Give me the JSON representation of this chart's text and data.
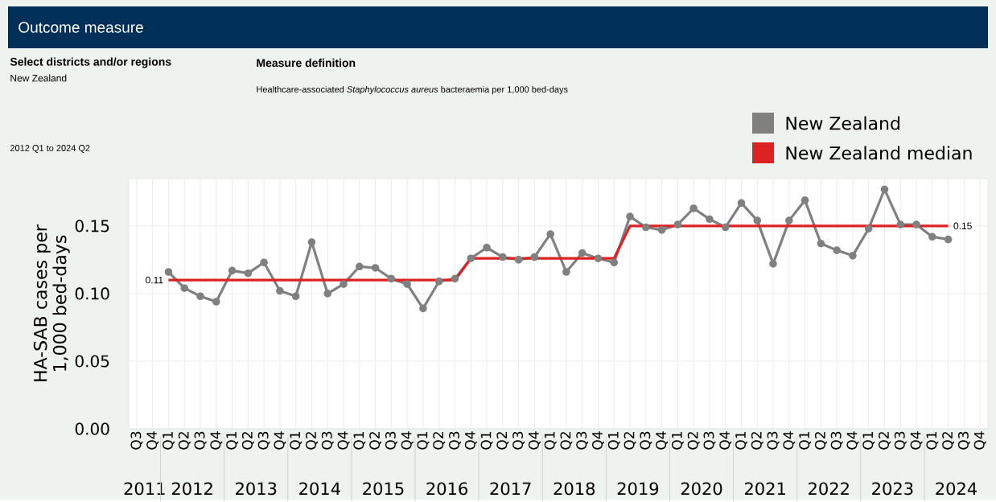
{
  "chart_data": {
    "type": "line",
    "title": "Outcome measure",
    "annotations": [
      "Select districts and/or regions",
      "New Zealand",
      "Measure definition",
      "Healthcare-associated *Staphylococcus aureus* bacteraemia per 1,000 bed-days",
      "2012 Q1 to 2024 Q2",
      "2011",
      "2012",
      "2013",
      "2014",
      "2015",
      "2016",
      "2017",
      "2018",
      "2019",
      "2020",
      "2021",
      "2022",
      "2023",
      "2024"
    ],
    "ylabel": "HA-SAB cases per 1,000 bed-days",
    "categories": [
      "Q3",
      "Q4",
      "Q1",
      "Q2",
      "Q3",
      "Q4",
      "Q1",
      "Q2",
      "Q3",
      "Q4",
      "Q1",
      "Q2",
      "Q3",
      "Q4",
      "Q1",
      "Q2",
      "Q3",
      "Q4",
      "Q1",
      "Q2",
      "Q3",
      "Q4",
      "Q1",
      "Q2",
      "Q3",
      "Q4",
      "Q1",
      "Q2",
      "Q3",
      "Q4",
      "Q1",
      "Q2",
      "Q3",
      "Q4",
      "Q1",
      "Q2",
      "Q3",
      "Q4",
      "Q1",
      "Q2",
      "Q3",
      "Q4",
      "Q1",
      "Q2",
      "Q3",
      "Q4",
      "Q1",
      "Q2",
      "Q3",
      "Q4",
      "Q1",
      "Q2",
      "Q3",
      "Q4"
    ],
    "series": [
      {
        "name": "New Zealand",
        "color": "#808080",
        "marker": "circle",
        "values": [
          null,
          null,
          0.116,
          0.104,
          0.098,
          0.094,
          0.117,
          0.115,
          0.123,
          0.102,
          0.098,
          0.138,
          0.1,
          0.107,
          0.12,
          0.119,
          0.111,
          0.107,
          0.089,
          0.109,
          0.111,
          0.126,
          0.134,
          0.127,
          0.125,
          0.127,
          0.144,
          0.116,
          0.13,
          0.126,
          0.123,
          0.157,
          0.149,
          0.147,
          0.151,
          0.163,
          0.155,
          0.149,
          0.167,
          0.154,
          0.122,
          0.154,
          0.169,
          0.137,
          0.132,
          0.128,
          0.148,
          0.177,
          0.151,
          0.151,
          0.142,
          0.14,
          null,
          null
        ]
      },
      {
        "name": "New Zealand median",
        "color": "#dd2222",
        "values": [
          null,
          null,
          0.11,
          0.11,
          0.11,
          0.11,
          0.11,
          0.11,
          0.11,
          0.11,
          0.11,
          0.11,
          0.11,
          0.11,
          0.11,
          0.11,
          0.11,
          0.11,
          0.11,
          0.11,
          0.11,
          0.126,
          0.126,
          0.126,
          0.126,
          0.126,
          0.126,
          0.126,
          0.126,
          0.126,
          0.126,
          0.15,
          0.15,
          0.15,
          0.15,
          0.15,
          0.15,
          0.15,
          0.15,
          0.15,
          0.15,
          0.15,
          0.15,
          0.15,
          0.15,
          0.15,
          0.15,
          0.15,
          0.15,
          0.15,
          0.15,
          0.15,
          null,
          null
        ],
        "value_labels": [
          null,
          null,
          "0.11",
          null,
          null,
          null,
          null,
          null,
          null,
          null,
          null,
          null,
          null,
          null,
          null,
          null,
          null,
          null,
          null,
          null,
          null,
          null,
          null,
          null,
          null,
          null,
          null,
          null,
          null,
          null,
          null,
          null,
          null,
          null,
          null,
          null,
          null,
          null,
          null,
          null,
          null,
          null,
          null,
          null,
          null,
          null,
          null,
          null,
          null,
          null,
          null,
          "0.15",
          null,
          null
        ]
      }
    ],
    "ylim": [
      0,
      0.185
    ],
    "yticks": [
      {
        "value": 0,
        "label": "0.00"
      },
      {
        "value": 0.05,
        "label": "0.05"
      },
      {
        "value": 0.1,
        "label": "0.10"
      },
      0.15
    ],
    "grid": true,
    "legend": "top right",
    "line_style": "solid"
  }
}
